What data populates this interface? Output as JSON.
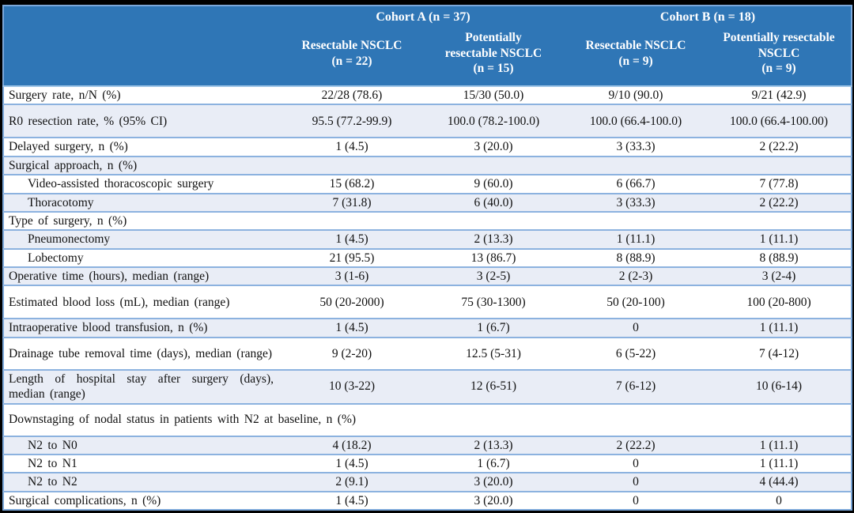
{
  "table": {
    "cohorts": [
      {
        "label": "Cohort A (n = 37)"
      },
      {
        "label": "Cohort B (n = 18)"
      }
    ],
    "columns": [
      {
        "label": "Resectable NSCLC\n(n = 22)"
      },
      {
        "label": "Potentially\nresectable NSCLC\n(n = 15)"
      },
      {
        "label": "Resectable NSCLC\n(n = 9)"
      },
      {
        "label": "Potentially resectable\nNSCLC\n(n = 9)"
      }
    ],
    "rows": [
      {
        "label": "Surgery rate, n/N (%)",
        "section": false,
        "indent": false,
        "values": [
          "22/28 (78.6)",
          "15/30 (50.0)",
          "9/10 (90.0)",
          "9/21 (42.9)"
        ]
      },
      {
        "label": "R0 resection rate, % (95% CI)",
        "section": false,
        "indent": false,
        "values": [
          "95.5 (77.2-99.9)",
          "100.0 (78.2-100.0)",
          "100.0 (66.4-100.0)",
          "100.0 (66.4-100.00)"
        ]
      },
      {
        "label": "Delayed surgery, n (%)",
        "section": false,
        "indent": false,
        "values": [
          "1 (4.5)",
          "3 (20.0)",
          "3 (33.3)",
          "2 (22.2)"
        ]
      },
      {
        "label": "Surgical approach, n (%)",
        "section": true,
        "indent": false,
        "values": []
      },
      {
        "label": "Video-assisted thoracoscopic surgery",
        "section": false,
        "indent": true,
        "values": [
          "15 (68.2)",
          "9 (60.0)",
          "6 (66.7)",
          "7 (77.8)"
        ]
      },
      {
        "label": "Thoracotomy",
        "section": false,
        "indent": true,
        "values": [
          "7 (31.8)",
          "6 (40.0)",
          "3 (33.3)",
          "2 (22.2)"
        ]
      },
      {
        "label": "Type of surgery, n (%)",
        "section": true,
        "indent": false,
        "values": []
      },
      {
        "label": "Pneumonectomy",
        "section": false,
        "indent": true,
        "values": [
          "1 (4.5)",
          "2 (13.3)",
          "1 (11.1)",
          "1 (11.1)"
        ]
      },
      {
        "label": "Lobectomy",
        "section": false,
        "indent": true,
        "values": [
          "21 (95.5)",
          "13 (86.7)",
          "8 (88.9)",
          "8 (88.9)"
        ]
      },
      {
        "label": "Operative time (hours), median (range)",
        "section": false,
        "indent": false,
        "values": [
          "3 (1-6)",
          "3 (2-5)",
          "2 (2-3)",
          "3 (2-4)"
        ]
      },
      {
        "label": "Estimated blood loss (mL), median (range)",
        "section": false,
        "indent": false,
        "values": [
          "50 (20-2000)",
          "75 (30-1300)",
          "50 (20-100)",
          "100 (20-800)"
        ]
      },
      {
        "label": "Intraoperative blood transfusion, n (%)",
        "section": false,
        "indent": false,
        "values": [
          "1 (4.5)",
          "1 (6.7)",
          "0",
          "1 (11.1)"
        ]
      },
      {
        "label": "Drainage tube removal time (days), median (range)",
        "section": false,
        "indent": false,
        "values": [
          "9 (2-20)",
          "12.5 (5-31)",
          "6 (5-22)",
          "7 (4-12)"
        ]
      },
      {
        "label": "Length of hospital stay after surgery (days), median (range)",
        "section": false,
        "indent": false,
        "values": [
          "10 (3-22)",
          "12 (6-51)",
          "7 (6-12)",
          "10 (6-14)"
        ]
      },
      {
        "label": "Downstaging of nodal status in patients with N2 at baseline, n (%)",
        "section": true,
        "indent": false,
        "values": []
      },
      {
        "label": "N2 to N0",
        "section": false,
        "indent": true,
        "values": [
          "4 (18.2)",
          "2 (13.3)",
          "2 (22.2)",
          "1 (11.1)"
        ]
      },
      {
        "label": "N2 to N1",
        "section": false,
        "indent": true,
        "values": [
          "1 (4.5)",
          "1 (6.7)",
          "0",
          "1 (11.1)"
        ]
      },
      {
        "label": "N2 to N2",
        "section": false,
        "indent": true,
        "values": [
          "2 (9.1)",
          "3 (20.0)",
          "0",
          "4 (44.4)"
        ]
      },
      {
        "label": "Surgical complications, n (%)",
        "section": false,
        "indent": false,
        "values": [
          "1 (4.5)",
          "3 (20.0)",
          "0",
          "0"
        ]
      }
    ]
  },
  "colors": {
    "header_bg": "#2F76B6",
    "header_text": "#FFFFFF",
    "stripe_bg": "#E9EDF6",
    "row_border": "#8CB2DF",
    "outer_border": "#7CA8DA",
    "frame_bg": "#000000",
    "body_text": "#111111"
  }
}
